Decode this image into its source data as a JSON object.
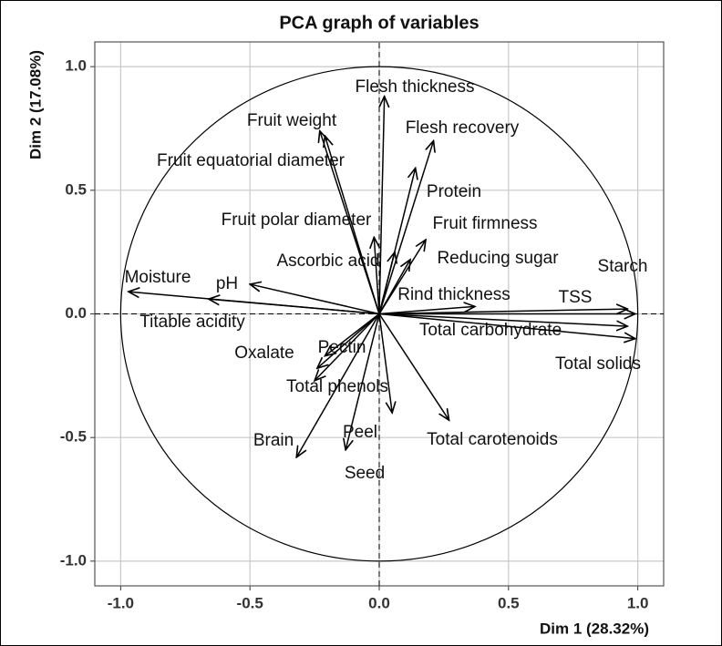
{
  "chart_data": {
    "type": "pca",
    "title": "PCA graph of variables",
    "x_label": "Dim 1 (28.32%)",
    "y_label": "Dim 2 (17.08%)",
    "xlim": [
      -1.1,
      1.1
    ],
    "ylim": [
      -1.1,
      1.1
    ],
    "xticks": [
      {
        "value": -1,
        "label": "-1.0"
      },
      -0.5,
      {
        "value": 0,
        "label": "0.0"
      },
      0.5,
      {
        "value": 1,
        "label": "1.0"
      }
    ],
    "yticks": [
      {
        "value": -1,
        "label": "-1.0"
      },
      -0.5,
      {
        "value": 0,
        "label": "0.0"
      },
      0.5,
      {
        "value": 1,
        "label": "1.0"
      }
    ],
    "grid": true,
    "color": "#000000",
    "variables": [
      "Flesh thickness",
      "Fruit weight",
      "Fruit equatorial diameter",
      "Flesh recovery",
      "Protein",
      "Fruit firmness",
      "Reducing sugar",
      "Fruit polar diameter",
      "Ascorbic acid",
      "Starch",
      "TSS",
      "Rind thickness",
      "Total carbohydrate",
      "Total solids",
      "Moisture",
      "pH",
      "Titable acidity",
      "Oxalate",
      "Pectin",
      "Total phenols",
      "Brain",
      "Peel",
      "Seed",
      "Total carotenoids"
    ],
    "x": [
      0.02,
      -0.23,
      -0.21,
      0.21,
      0.14,
      0.18,
      0.12,
      -0.02,
      0.06,
      0.96,
      0.99,
      0.37,
      0.96,
      0.99,
      -0.97,
      -0.5,
      -0.66,
      -0.25,
      -0.21,
      -0.24,
      -0.32,
      0.05,
      -0.13,
      0.27
    ],
    "y": [
      0.88,
      0.74,
      0.72,
      0.7,
      0.59,
      0.3,
      0.22,
      0.31,
      0.25,
      0.02,
      0,
      0.03,
      -0.05,
      -0.1,
      0.09,
      0.12,
      0.06,
      -0.27,
      -0.17,
      -0.22,
      -0.58,
      -0.4,
      -0.55,
      -0.43
    ]
  }
}
